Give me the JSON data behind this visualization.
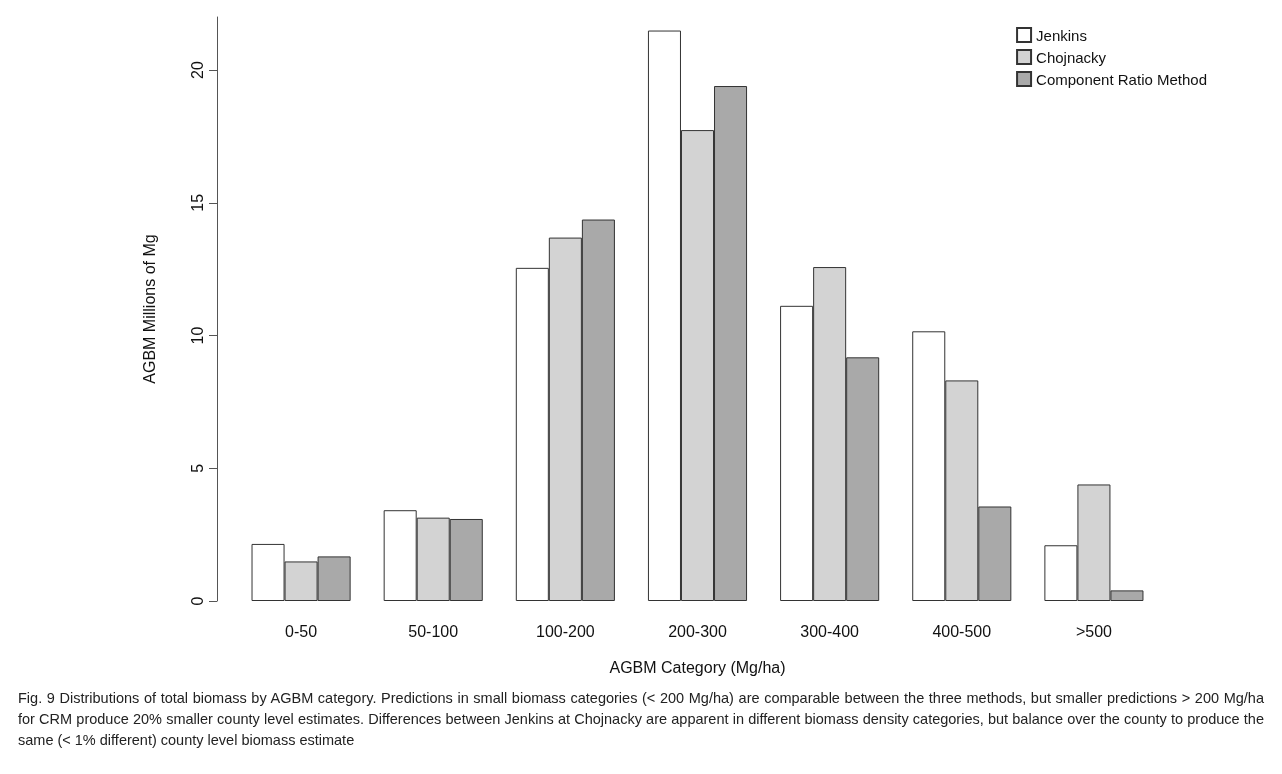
{
  "chart_data": {
    "type": "bar",
    "categories": [
      "0-50",
      "50-100",
      "100-200",
      "200-300",
      "300-400",
      "400-500",
      ">500"
    ],
    "series": [
      {
        "name": "Jenkins",
        "color": "#ffffff",
        "values": [
          2.15,
          3.42,
          12.55,
          21.49,
          11.12,
          10.16,
          2.1
        ]
      },
      {
        "name": "Chojnacky",
        "color": "#d3d3d3",
        "values": [
          1.49,
          3.14,
          13.69,
          17.74,
          12.58,
          8.31,
          4.39
        ]
      },
      {
        "name": "Component Ratio Method",
        "color": "#a9a9a9",
        "values": [
          1.68,
          3.09,
          14.37,
          19.4,
          9.18,
          3.56,
          0.4
        ]
      }
    ],
    "xlabel": "AGBM Category (Mg/ha)",
    "ylabel": "AGBM Millions of Mg",
    "ylim": [
      0,
      22
    ],
    "yticks": [
      0,
      5,
      10,
      15,
      20
    ],
    "grid": false,
    "legend": "top right",
    "annotations": [
      "Fig. 9  Distributions of total biomass by AGBM category. Predictions in small biomass categories (< 200 Mg/ha) are comparable between the three methods, but smaller predictions > 200 Mg/ha for CRM produce 20% smaller county level estimates. Differences between Jenkins at Chojnacky are apparent in different biomass density categories, but balance over the county to produce the same (< 1% different) county level biomass estimate"
    ]
  }
}
